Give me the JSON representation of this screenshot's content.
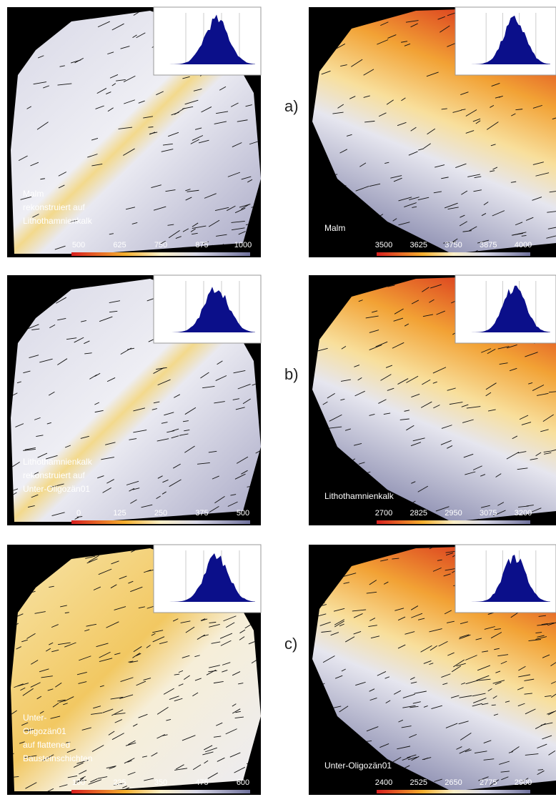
{
  "rows": [
    {
      "label": "a)",
      "left": {
        "caption": [
          "Malm",
          "rekonstruiert auf",
          "Lithothamnienkalk"
        ],
        "ticks": [
          500,
          625,
          750,
          875,
          1000
        ]
      },
      "right": {
        "caption": [
          "Malm"
        ],
        "ticks": [
          3500,
          3625,
          3750,
          3875,
          4000
        ]
      }
    },
    {
      "label": "b)",
      "left": {
        "caption": [
          "Lithothamnienkalk",
          "rekonstruiert auf",
          "Unter-Oligozän01"
        ],
        "ticks": [
          0,
          125,
          250,
          375,
          500
        ]
      },
      "right": {
        "caption": [
          "Lithothamnienkalk"
        ],
        "ticks": [
          2700,
          2825,
          2950,
          3075,
          3200
        ]
      }
    },
    {
      "label": "c)",
      "left": {
        "caption": [
          "Unter-",
          "Oligozän01",
          "auf flattened",
          "Bausteinschichten"
        ],
        "ticks": [
          100,
          225,
          350,
          475,
          600
        ]
      },
      "right": {
        "caption": [
          "Unter-Oligozän01"
        ],
        "ticks": [
          2400,
          2525,
          2650,
          2775,
          2900
        ]
      }
    }
  ]
}
